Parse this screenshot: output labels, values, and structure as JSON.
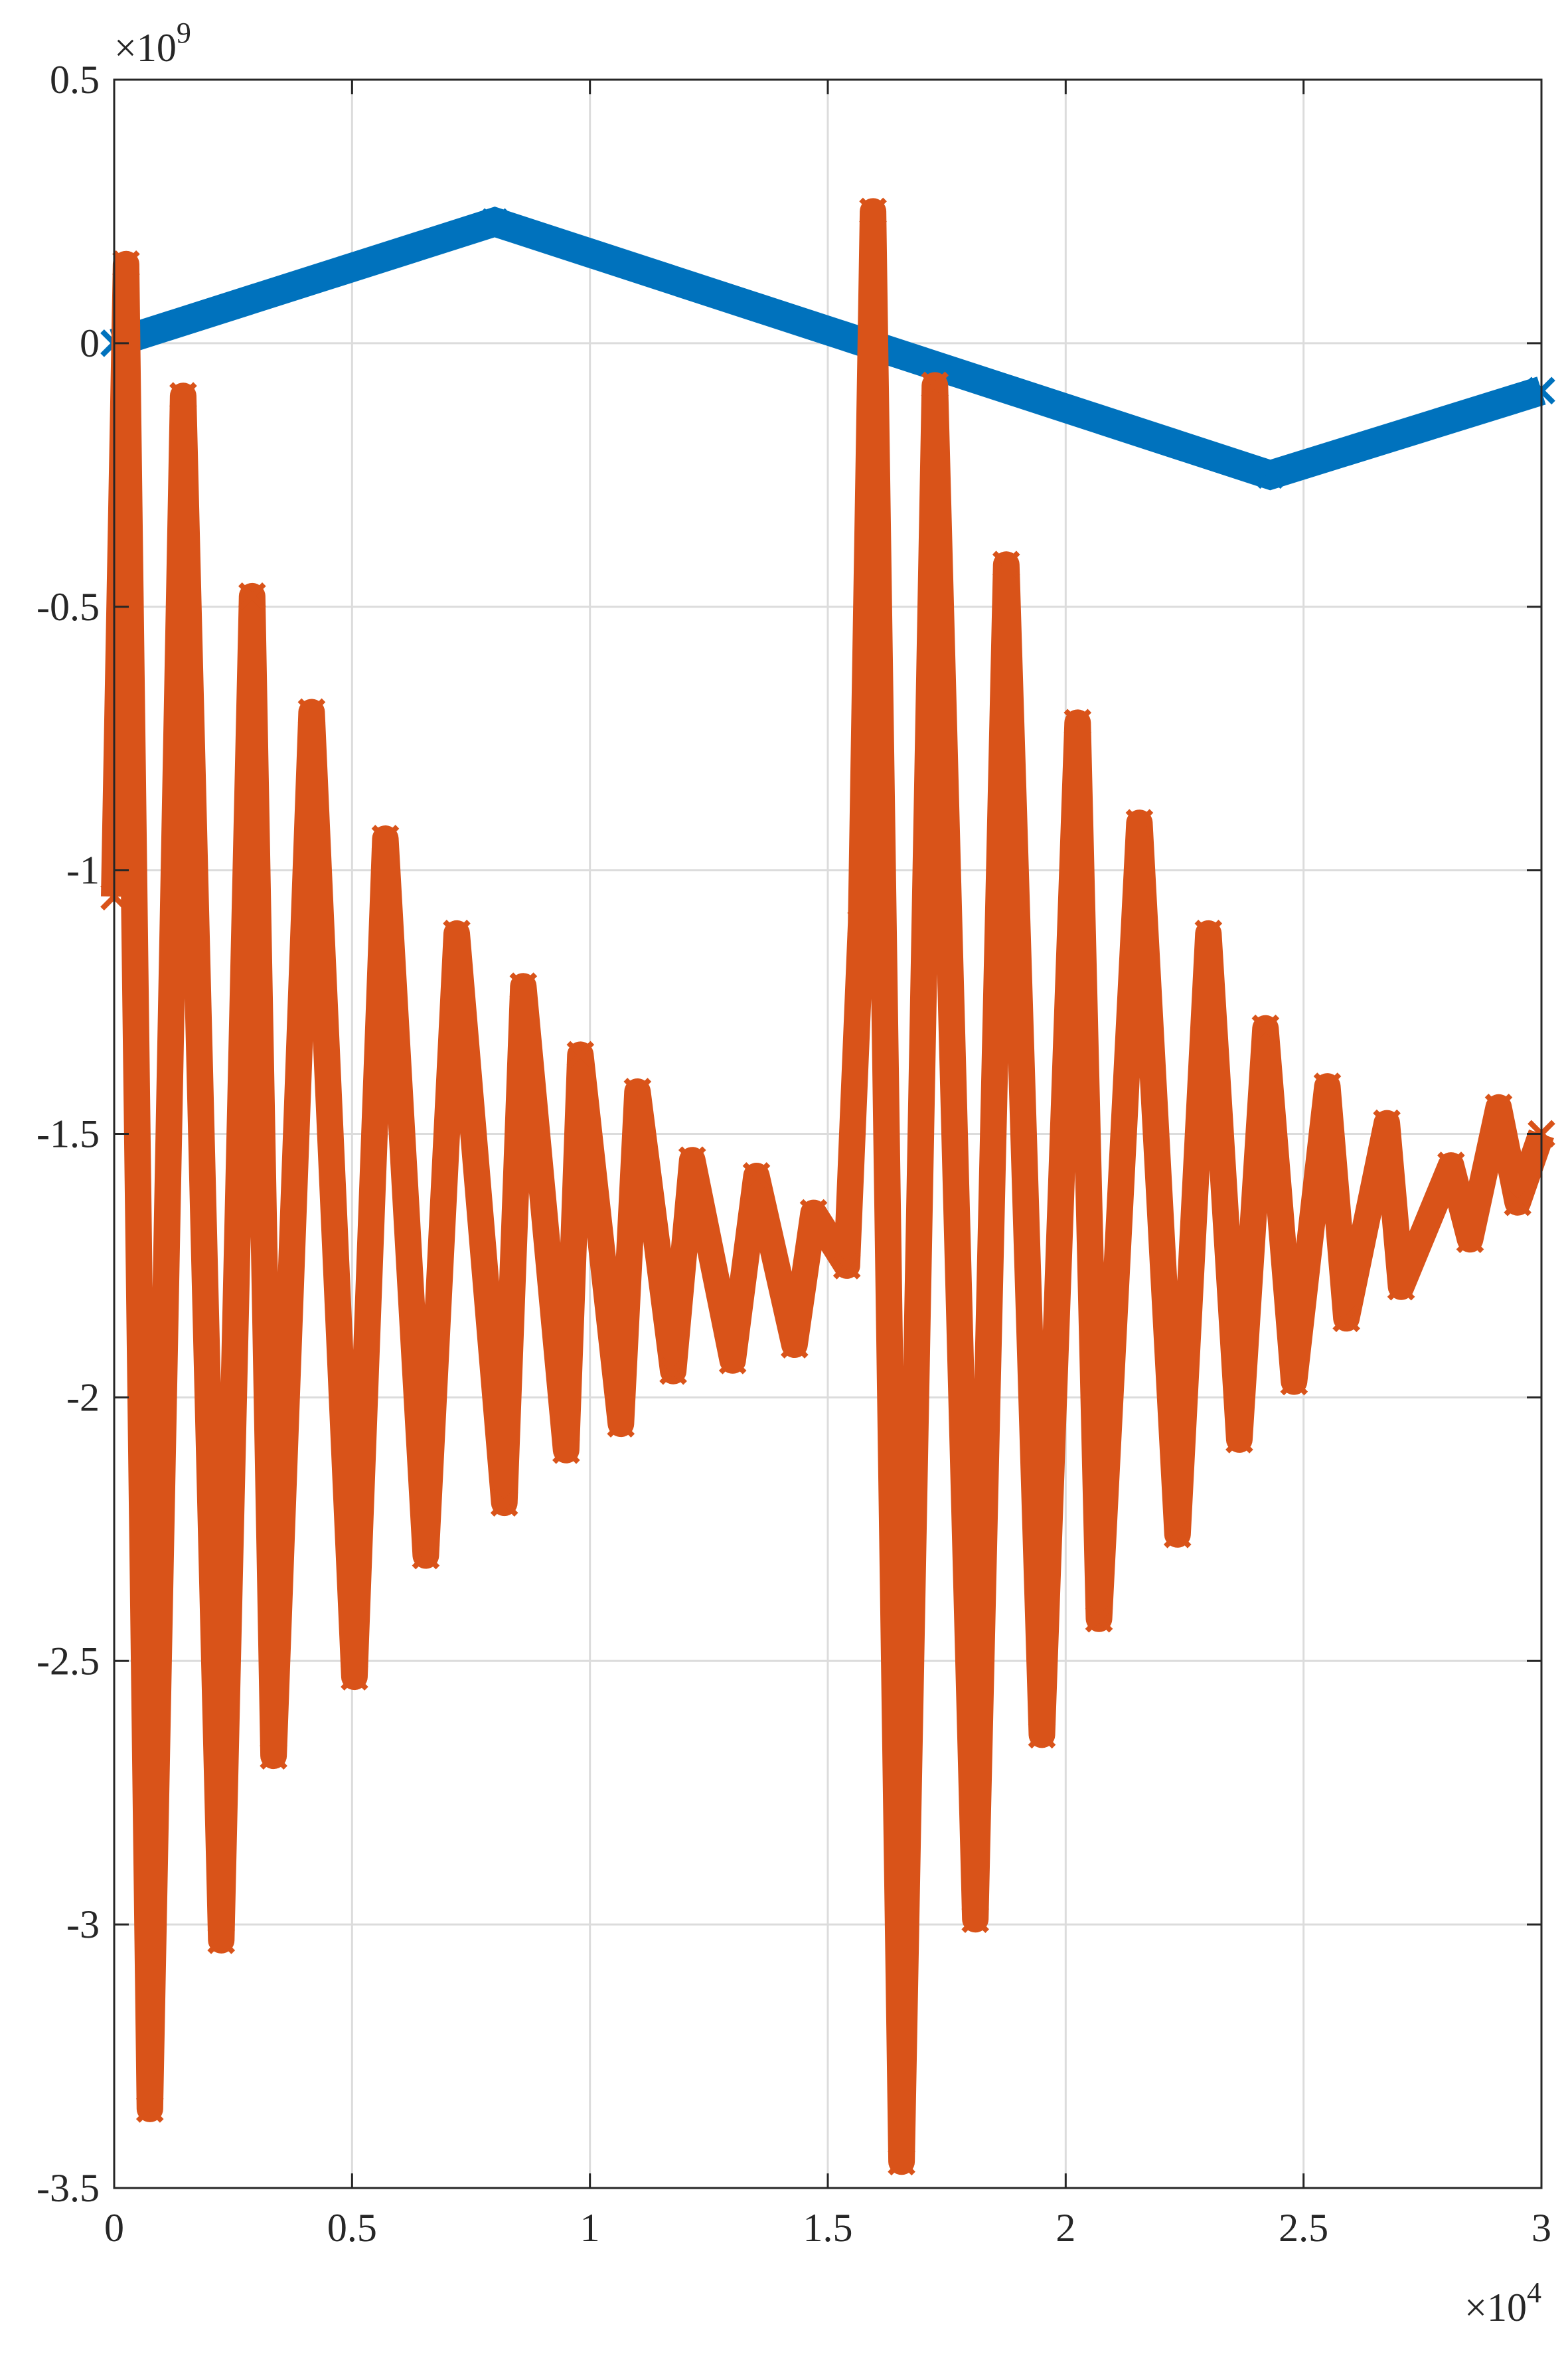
{
  "chart_data": {
    "type": "line",
    "title": "",
    "xlabel": "",
    "ylabel": "",
    "xlim": [
      0,
      30000
    ],
    "ylim": [
      -3500000000,
      500000000
    ],
    "x_exponent_label": {
      "base": "×10",
      "exp": "4"
    },
    "y_exponent_label": {
      "base": "×10",
      "exp": "9"
    },
    "x_ticks": [
      0,
      5000,
      10000,
      15000,
      20000,
      25000,
      30000
    ],
    "x_tick_labels": [
      "0",
      "0.5",
      "1",
      "1.5",
      "2",
      "2.5",
      "3"
    ],
    "y_ticks": [
      500000000,
      0,
      -500000000,
      -1000000000,
      -1500000000,
      -2000000000,
      -2500000000,
      -3000000000,
      -3500000000
    ],
    "y_tick_labels": [
      "0.5",
      "0",
      "-0.5",
      "-1",
      "-1.5",
      "-2",
      "-2.5",
      "-3",
      "-3.5"
    ],
    "grid": true,
    "legend": null,
    "series": [
      {
        "color": "#0072BD",
        "marker": "x",
        "x": [
          0,
          8000,
          24300,
          30000
        ],
        "y": [
          0,
          230000000,
          -250000000,
          -90000000
        ]
      },
      {
        "color": "#D95319",
        "marker": "x",
        "description": "damped oscillation restarted at x≈15,700; values listed as peak/trough envelope points",
        "x": [
          0,
          250,
          750,
          1450,
          2250,
          2900,
          3350,
          4150,
          5050,
          5700,
          6550,
          7200,
          8200,
          8600,
          9500,
          9800,
          10650,
          11000,
          11750,
          12150,
          13000,
          13500,
          14300,
          14700,
          15400,
          15700,
          15950,
          16550,
          17250,
          18100,
          18750,
          19500,
          20250,
          20700,
          21550,
          22350,
          23000,
          23650,
          24200,
          24800,
          25500,
          25900,
          26750,
          27050,
          28100,
          28500,
          29100,
          29500,
          30000
        ],
        "y": [
          -1050000000,
          150000000,
          -3350000000,
          -100000000,
          -3030000000,
          -480000000,
          -2680000000,
          -700000000,
          -2530000000,
          -940000000,
          -2300000000,
          -1120000000,
          -2200000000,
          -1220000000,
          -2100000000,
          -1350000000,
          -2050000000,
          -1420000000,
          -1950000000,
          -1550000000,
          -1930000000,
          -1580000000,
          -1900000000,
          -1650000000,
          -1750000000,
          -1100000000,
          250000000,
          -3450000000,
          -80000000,
          -2990000000,
          -420000000,
          -2640000000,
          -720000000,
          -2420000000,
          -910000000,
          -2260000000,
          -1120000000,
          -2080000000,
          -1300000000,
          -1970000000,
          -1410000000,
          -1850000000,
          -1480000000,
          -1790000000,
          -1560000000,
          -1700000000,
          -1450000000,
          -1630000000,
          -1500000000
        ]
      }
    ]
  }
}
